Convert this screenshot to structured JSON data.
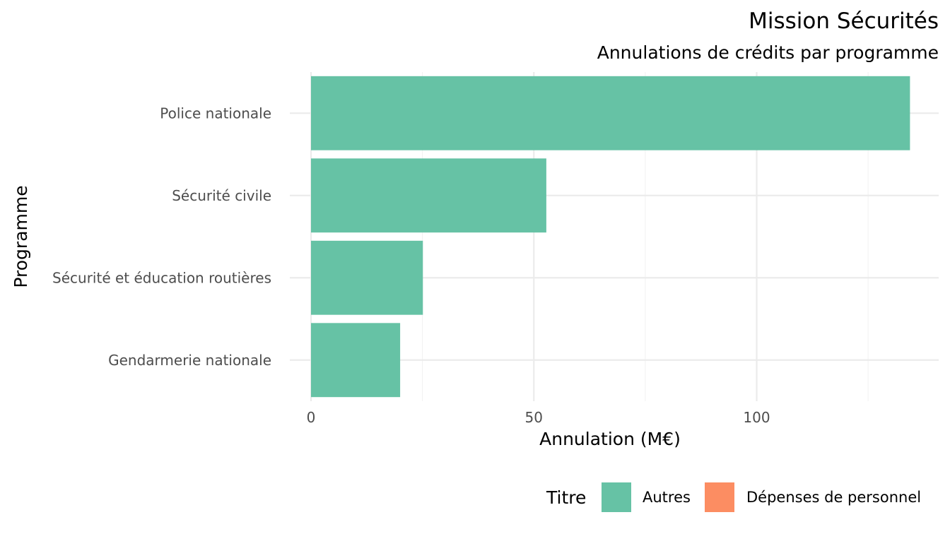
{
  "chart_data": {
    "type": "bar",
    "orientation": "horizontal",
    "title": "Mission Sécurités",
    "subtitle": "Annulations de crédits par programme",
    "xlabel": "Annulation (M€)",
    "ylabel": "Programme",
    "categories": [
      "Police nationale",
      "Sécurité civile",
      "Sécurité et éducation routières",
      "Gendarmerie nationale"
    ],
    "series": [
      {
        "name": "Autres",
        "color": "#66C2A5",
        "values": [
          134.4,
          52.8,
          25.1,
          20.0
        ]
      },
      {
        "name": "Dépenses de personnel",
        "color": "#FC8D62",
        "values": [
          0,
          0,
          0,
          0
        ]
      }
    ],
    "xlim": [
      0,
      140
    ],
    "xticks": [
      0,
      50,
      100
    ],
    "xtick_labels": [
      "0",
      "50",
      "100"
    ],
    "grid": true,
    "legend": {
      "title": "Titre",
      "position": "bottom",
      "entries": [
        "Autres",
        "Dépenses de personnel"
      ]
    }
  }
}
